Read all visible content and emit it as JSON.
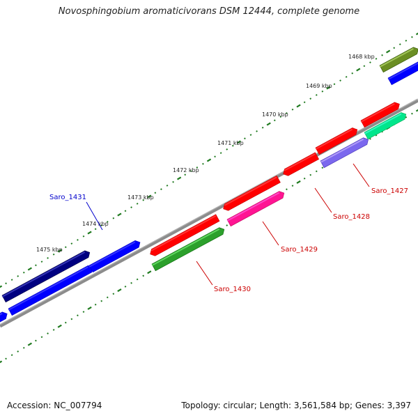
{
  "title": "Novosphingobium aromaticivorans DSM 12444, complete genome",
  "footer": {
    "accession": "Accession: NC_007794",
    "summary": "Topology: circular; Length: 3,561,584 bp; Genes: 3,397"
  },
  "kbp_labels": [
    "1468 kbp",
    "1469 kbp",
    "1470 kbp",
    "1471 kbp",
    "1472 kbp",
    "1473 kbp",
    "1474 kbp",
    "1475 kbp"
  ],
  "gene_labels": [
    {
      "text": "Saro_1427",
      "color": "#cc0000"
    },
    {
      "text": "Saro_1428",
      "color": "#cc0000"
    },
    {
      "text": "Saro_1429",
      "color": "#cc0000"
    },
    {
      "text": "Saro_1430",
      "color": "#cc0000"
    },
    {
      "text": "Saro_1431",
      "color": "#0000cc"
    }
  ],
  "colors": {
    "red": "#ff0000",
    "navy": "#000080",
    "blue": "#0000ff",
    "green": "#2ca02c",
    "magenta": "#ff1493",
    "olive": "#6b8e23",
    "aqua": "#00e68c",
    "lavender": "#7b68ee",
    "backbone": "#888888",
    "ticks": "#1f7a1f"
  }
}
